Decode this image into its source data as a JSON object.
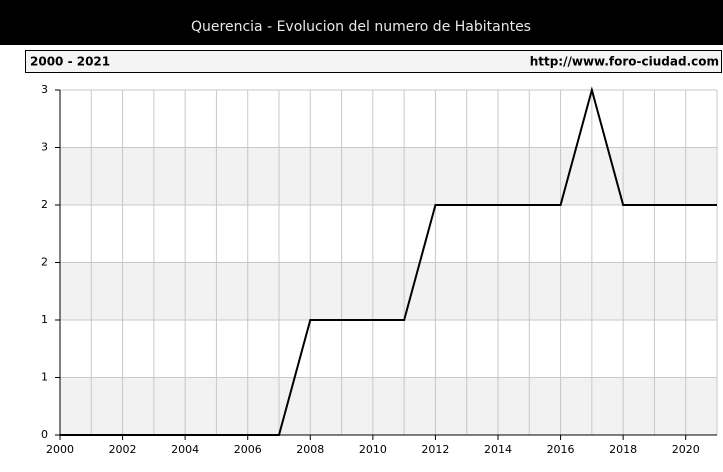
{
  "chart_data": {
    "type": "line",
    "title": "Querencia - Evolucion del numero de Habitantes",
    "subtitle": "2000 - 2021",
    "source": "http://www.foro-ciudad.com",
    "x": [
      2000,
      2001,
      2002,
      2003,
      2004,
      2005,
      2006,
      2007,
      2008,
      2009,
      2010,
      2011,
      2012,
      2013,
      2014,
      2015,
      2016,
      2017,
      2018,
      2019,
      2020,
      2021
    ],
    "values": [
      0,
      0,
      0,
      0,
      0,
      0,
      0,
      0,
      1,
      1,
      1,
      1,
      2,
      2,
      2,
      2,
      2,
      3,
      2,
      2,
      2,
      2
    ],
    "color": "#000000",
    "xlim": [
      2000,
      2021
    ],
    "xticks": [
      2000,
      2002,
      2004,
      2006,
      2008,
      2010,
      2012,
      2014,
      2016,
      2018,
      2020
    ],
    "ylim": [
      0,
      3
    ],
    "yticks": [
      0,
      {
        "value": 0.5,
        "label": "1"
      },
      1,
      {
        "value": 1.5,
        "label": "2"
      },
      2,
      {
        "value": 2.5,
        "label": "3"
      },
      3
    ],
    "grid": true
  }
}
